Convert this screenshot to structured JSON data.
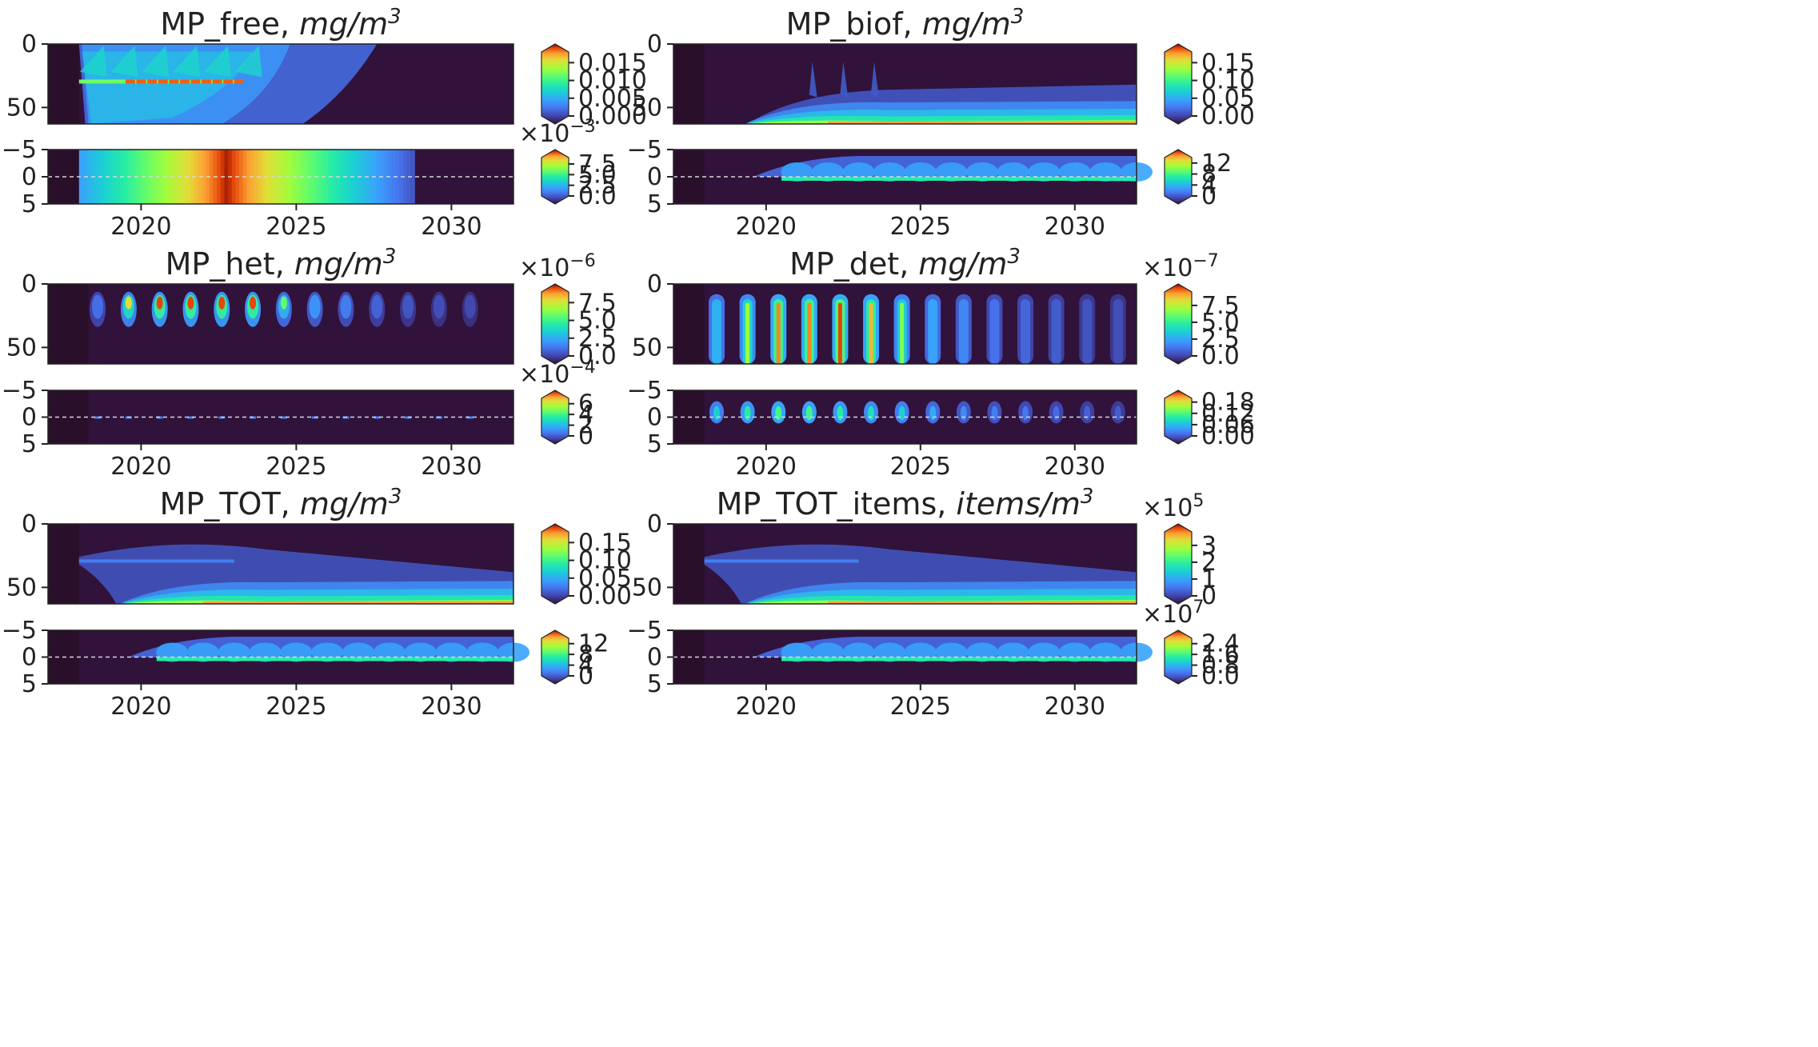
{
  "figure": {
    "x_ticks": [
      "2020",
      "2025",
      "2030"
    ],
    "x_tick_years": [
      2020,
      2025,
      2030
    ],
    "x_range": [
      2017,
      2032
    ],
    "top_y_ticks": [
      "0",
      "50"
    ],
    "top_y_values": [
      0,
      50
    ],
    "top_y_range": [
      0,
      63
    ],
    "bottom_y_ticks": [
      "−5",
      "0",
      "5"
    ],
    "bottom_y_values": [
      -5,
      0,
      5
    ],
    "bottom_y_range": [
      -5,
      5
    ]
  },
  "chart_data": [
    {
      "type": "heatmap",
      "title_name": "MP_free, ",
      "title_unit": "mg/m",
      "title_exp": "3",
      "kind": "free",
      "top_colorbar": {
        "multiplier": "",
        "multiplier_exp": "",
        "ticks": [
          "0.015",
          "0.010",
          "0.005",
          "0.000"
        ],
        "tick_values": [
          0.015,
          0.01,
          0.005,
          0.0
        ],
        "max": 0.018
      },
      "bottom_colorbar": {
        "multiplier": "×10",
        "multiplier_exp": "−3",
        "ticks": [
          "7.5",
          "5.0",
          "2.5",
          "0.0"
        ],
        "tick_values": [
          7.5,
          5.0,
          2.5,
          0.0
        ],
        "max": 9.0
      }
    },
    {
      "type": "heatmap",
      "title_name": "MP_biof, ",
      "title_unit": "mg/m",
      "title_exp": "3",
      "kind": "biof",
      "top_colorbar": {
        "multiplier": "",
        "multiplier_exp": "",
        "ticks": [
          "0.15",
          "0.10",
          "0.05",
          "0.00"
        ],
        "tick_values": [
          0.15,
          0.1,
          0.05,
          0.0
        ],
        "max": 0.18
      },
      "bottom_colorbar": {
        "multiplier": "",
        "multiplier_exp": "",
        "ticks": [
          "12",
          "8",
          "4",
          "0"
        ],
        "tick_values": [
          12,
          8,
          4,
          0
        ],
        "max": 14
      }
    },
    {
      "type": "heatmap",
      "title_name": "MP_het, ",
      "title_unit": "mg/m",
      "title_exp": "3",
      "kind": "het",
      "top_colorbar": {
        "multiplier": "×10",
        "multiplier_exp": "−6",
        "ticks": [
          "7.5",
          "5.0",
          "2.5",
          "0.0"
        ],
        "tick_values": [
          7.5,
          5.0,
          2.5,
          0.0
        ],
        "max": 9.0
      },
      "bottom_colorbar": {
        "multiplier": "×10",
        "multiplier_exp": "−4",
        "ticks": [
          "6",
          "4",
          "2",
          "0"
        ],
        "tick_values": [
          6,
          4,
          2,
          0
        ],
        "max": 7
      }
    },
    {
      "type": "heatmap",
      "title_name": "MP_det, ",
      "title_unit": "mg/m",
      "title_exp": "3",
      "kind": "det",
      "top_colorbar": {
        "multiplier": "×10",
        "multiplier_exp": "−7",
        "ticks": [
          "7.5",
          "5.0",
          "2.5",
          "0.0"
        ],
        "tick_values": [
          7.5,
          5.0,
          2.5,
          0.0
        ],
        "max": 9.5
      },
      "bottom_colorbar": {
        "multiplier": "",
        "multiplier_exp": "",
        "ticks": [
          "0.18",
          "0.12",
          "0.06",
          "0.00"
        ],
        "tick_values": [
          0.18,
          0.12,
          0.06,
          0.0
        ],
        "max": 0.2
      }
    },
    {
      "type": "heatmap",
      "title_name": "MP_TOT, ",
      "title_unit": "mg/m",
      "title_exp": "3",
      "kind": "tot",
      "top_colorbar": {
        "multiplier": "",
        "multiplier_exp": "",
        "ticks": [
          "0.15",
          "0.10",
          "0.05",
          "0.00"
        ],
        "tick_values": [
          0.15,
          0.1,
          0.05,
          0.0
        ],
        "max": 0.18
      },
      "bottom_colorbar": {
        "multiplier": "",
        "multiplier_exp": "",
        "ticks": [
          "12",
          "8",
          "4",
          "0"
        ],
        "tick_values": [
          12,
          8,
          4,
          0
        ],
        "max": 14
      }
    },
    {
      "type": "heatmap",
      "title_name": "MP_TOT_items, ",
      "title_unit": "items/m",
      "title_exp": "3",
      "kind": "tot",
      "top_colorbar": {
        "multiplier": "×10",
        "multiplier_exp": "5",
        "ticks": [
          "3",
          "2",
          "1",
          "0"
        ],
        "tick_values": [
          3,
          2,
          1,
          0
        ],
        "max": 3.8
      },
      "bottom_colorbar": {
        "multiplier": "×10",
        "multiplier_exp": "7",
        "ticks": [
          "2.4",
          "1.6",
          "0.8",
          "0.0"
        ],
        "tick_values": [
          2.4,
          1.6,
          0.8,
          0.0
        ],
        "max": 2.8
      }
    }
  ],
  "colors": {
    "background_field": "#30123b",
    "spinup_band": "#2a0f2a",
    "dashed_line": "#d8d8d8"
  }
}
